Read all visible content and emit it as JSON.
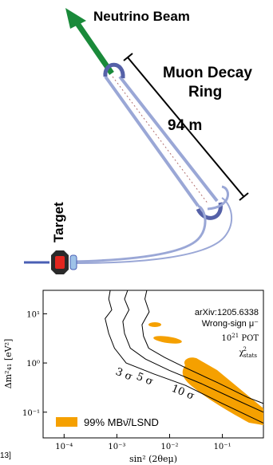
{
  "diagram": {
    "beam_label": "Neutrino Beam",
    "ring_label_line1": "Muon Decay",
    "ring_label_line2": "Ring",
    "length_label": "94 m",
    "target_label": "Target",
    "colors": {
      "beam_arrow": "#1a8a3a",
      "ring_outline": "#9aa7d6",
      "ring_bend": "#5561a8",
      "decay_track": "#b06b6b",
      "target_red": "#e3261f",
      "target_body": "#2a2a2a",
      "horn_blue": "#9fc3e8",
      "beamline": "#4a5fb4"
    },
    "icons": [
      "arrow-icon",
      "target-icon",
      "dimension-arrow-icon"
    ]
  },
  "plot": {
    "cutoff_text": "13]",
    "annotation_ref": "arXiv:1205.6338",
    "annotation_mode": "Wrong-sign μ⁻",
    "annotation_pot_base": "10",
    "annotation_pot_exp": "21",
    "annotation_pot_unit": "POT",
    "annotation_chi": "χ",
    "annotation_chi_sup": "2",
    "annotation_chi_sub": "stats",
    "legend_label": "99% MBν̄/LSND",
    "colors": {
      "allowed_region": "#f5a000",
      "contour": "#000000"
    }
  },
  "chart_data": {
    "type": "contour",
    "xlabel": "sin² (2θeμ)",
    "ylabel": "Δm²₄₁ [eV²]",
    "xscale": "log",
    "yscale": "log",
    "xlim": [
      4e-05,
      0.6
    ],
    "ylim": [
      0.03,
      30
    ],
    "xticks": [
      "10⁻⁴",
      "10⁻³",
      "10⁻²",
      "10⁻¹"
    ],
    "yticks": [
      "10¹",
      "10⁰",
      "10⁻¹"
    ],
    "contour_labels": [
      "3 σ",
      "5 σ",
      "10 σ"
    ],
    "series": [
      {
        "name": "3 σ",
        "points": [
          [
            0.00075,
            30
          ],
          [
            0.0007,
            20
          ],
          [
            0.0008,
            12
          ],
          [
            0.0006,
            8
          ],
          [
            0.0007,
            4
          ],
          [
            0.0009,
            2
          ],
          [
            0.0015,
            1.0
          ],
          [
            0.005,
            0.6
          ],
          [
            0.02,
            0.35
          ],
          [
            0.1,
            0.15
          ],
          [
            0.6,
            0.06
          ]
        ]
      },
      {
        "name": "5 σ",
        "points": [
          [
            0.0016,
            30
          ],
          [
            0.0014,
            20
          ],
          [
            0.0017,
            12
          ],
          [
            0.0013,
            7
          ],
          [
            0.0014,
            4
          ],
          [
            0.0018,
            2
          ],
          [
            0.0035,
            1.2
          ],
          [
            0.01,
            0.7
          ],
          [
            0.04,
            0.38
          ],
          [
            0.2,
            0.17
          ],
          [
            0.6,
            0.1
          ]
        ]
      },
      {
        "name": "10 σ",
        "points": [
          [
            0.0037,
            30
          ],
          [
            0.0034,
            20
          ],
          [
            0.0041,
            11
          ],
          [
            0.003,
            6
          ],
          [
            0.0032,
            3.5
          ],
          [
            0.004,
            2
          ],
          [
            0.008,
            1.3
          ],
          [
            0.02,
            0.8
          ],
          [
            0.08,
            0.4
          ],
          [
            0.3,
            0.2
          ],
          [
            0.6,
            0.15
          ]
        ]
      }
    ]
  }
}
